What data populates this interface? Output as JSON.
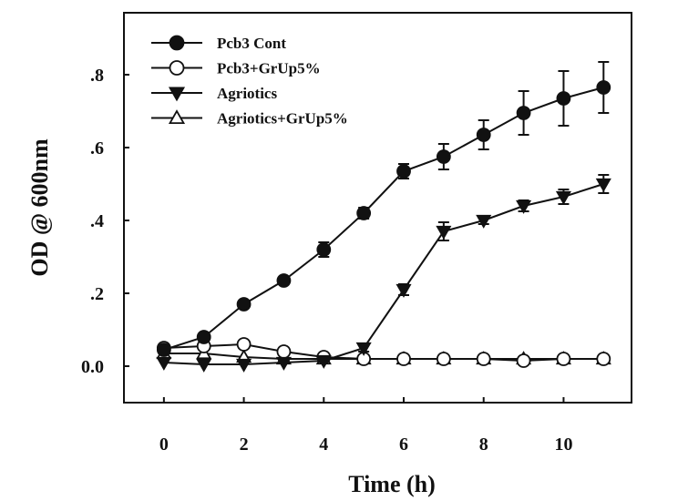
{
  "chart_data": {
    "type": "line",
    "xlabel": "Time (h)",
    "ylabel": "OD @ 600nm",
    "xlim": [
      -1,
      11.7
    ],
    "ylim": [
      -0.1,
      0.97
    ],
    "xticks": [
      0,
      2,
      4,
      6,
      8,
      10
    ],
    "xtick_labels": [
      "0",
      "2",
      "4",
      "6",
      "8",
      "10"
    ],
    "yticks": [
      0.0,
      0.2,
      0.4,
      0.6,
      0.8
    ],
    "ytick_labels": [
      "0.0",
      ".2",
      ".4",
      ".6",
      ".8"
    ],
    "x": [
      0,
      1,
      2,
      3,
      4,
      5,
      6,
      7,
      8,
      9,
      10,
      11
    ],
    "grid": false,
    "legend_position": "top-left",
    "series": [
      {
        "name": "Pcb3 Cont",
        "marker": "filled-circle",
        "values": [
          0.045,
          0.08,
          0.17,
          0.235,
          0.32,
          0.42,
          0.535,
          0.575,
          0.635,
          0.695,
          0.735,
          0.765
        ],
        "errors": [
          0.01,
          0.01,
          0.01,
          0.01,
          0.02,
          0.015,
          0.02,
          0.035,
          0.04,
          0.06,
          0.075,
          0.07
        ]
      },
      {
        "name": "Pcb3+GrUp5%",
        "marker": "open-circle",
        "values": [
          0.05,
          0.055,
          0.06,
          0.04,
          0.025,
          0.02,
          0.02,
          0.02,
          0.02,
          0.015,
          0.02,
          0.02
        ],
        "errors": [
          0,
          0,
          0,
          0,
          0,
          0,
          0,
          0,
          0,
          0,
          0,
          0
        ]
      },
      {
        "name": "Agriotics",
        "marker": "filled-triangle-down",
        "values": [
          0.01,
          0.005,
          0.005,
          0.01,
          0.015,
          0.05,
          0.21,
          0.37,
          0.4,
          0.44,
          0.465,
          0.5
        ],
        "errors": [
          0,
          0,
          0,
          0,
          0,
          0.01,
          0.015,
          0.025,
          0.01,
          0.015,
          0.02,
          0.025
        ]
      },
      {
        "name": "Agriotics+GrUp5%",
        "marker": "open-triangle-up",
        "values": [
          0.035,
          0.035,
          0.025,
          0.02,
          0.02,
          0.02,
          0.02,
          0.02,
          0.02,
          0.02,
          0.02,
          0.02
        ],
        "errors": [
          0,
          0,
          0,
          0,
          0,
          0,
          0,
          0,
          0,
          0,
          0,
          0
        ]
      }
    ]
  }
}
